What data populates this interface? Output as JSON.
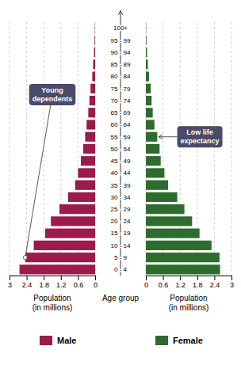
{
  "chart_data": {
    "type": "bar",
    "orientation": "horizontal",
    "categories": [
      "0 - 4",
      "5 - 9",
      "10 - 14",
      "15 - 19",
      "20 - 24",
      "25 - 29",
      "30 - 34",
      "35 - 39",
      "40 - 44",
      "45 - 49",
      "50 - 54",
      "55 - 59",
      "60 - 64",
      "65 - 69",
      "70 - 74",
      "75 - 79",
      "80 - 84",
      "85 - 89",
      "90 - 94",
      "95 - 99",
      "100+"
    ],
    "series": [
      {
        "name": "Male",
        "color": "#9B1B4B",
        "values": [
          2.65,
          2.45,
          2.15,
          1.75,
          1.55,
          1.25,
          0.95,
          0.7,
          0.6,
          0.5,
          0.42,
          0.35,
          0.3,
          0.24,
          0.2,
          0.16,
          0.1,
          0.07,
          0.04,
          0.02,
          0.01
        ]
      },
      {
        "name": "Female",
        "color": "#2E6B2E",
        "values": [
          2.6,
          2.58,
          2.3,
          1.88,
          1.62,
          1.35,
          1.1,
          0.78,
          0.65,
          0.52,
          0.48,
          0.4,
          0.3,
          0.24,
          0.2,
          0.17,
          0.11,
          0.07,
          0.04,
          0.02,
          0.01
        ]
      }
    ],
    "xlim": [
      0,
      3
    ],
    "xticks": [
      0,
      0.6,
      1.2,
      1.8,
      2.4,
      3
    ],
    "xlabel": "Population\n(in millions)",
    "ylabel": "Age group",
    "grid": true,
    "legend": "bottom",
    "annotations": [
      {
        "text": "Young\ndependents",
        "series": "Male",
        "category": "5 - 9"
      },
      {
        "text": "Low life\nexpectancy",
        "series": "Female",
        "category": "55 - 59"
      }
    ]
  }
}
